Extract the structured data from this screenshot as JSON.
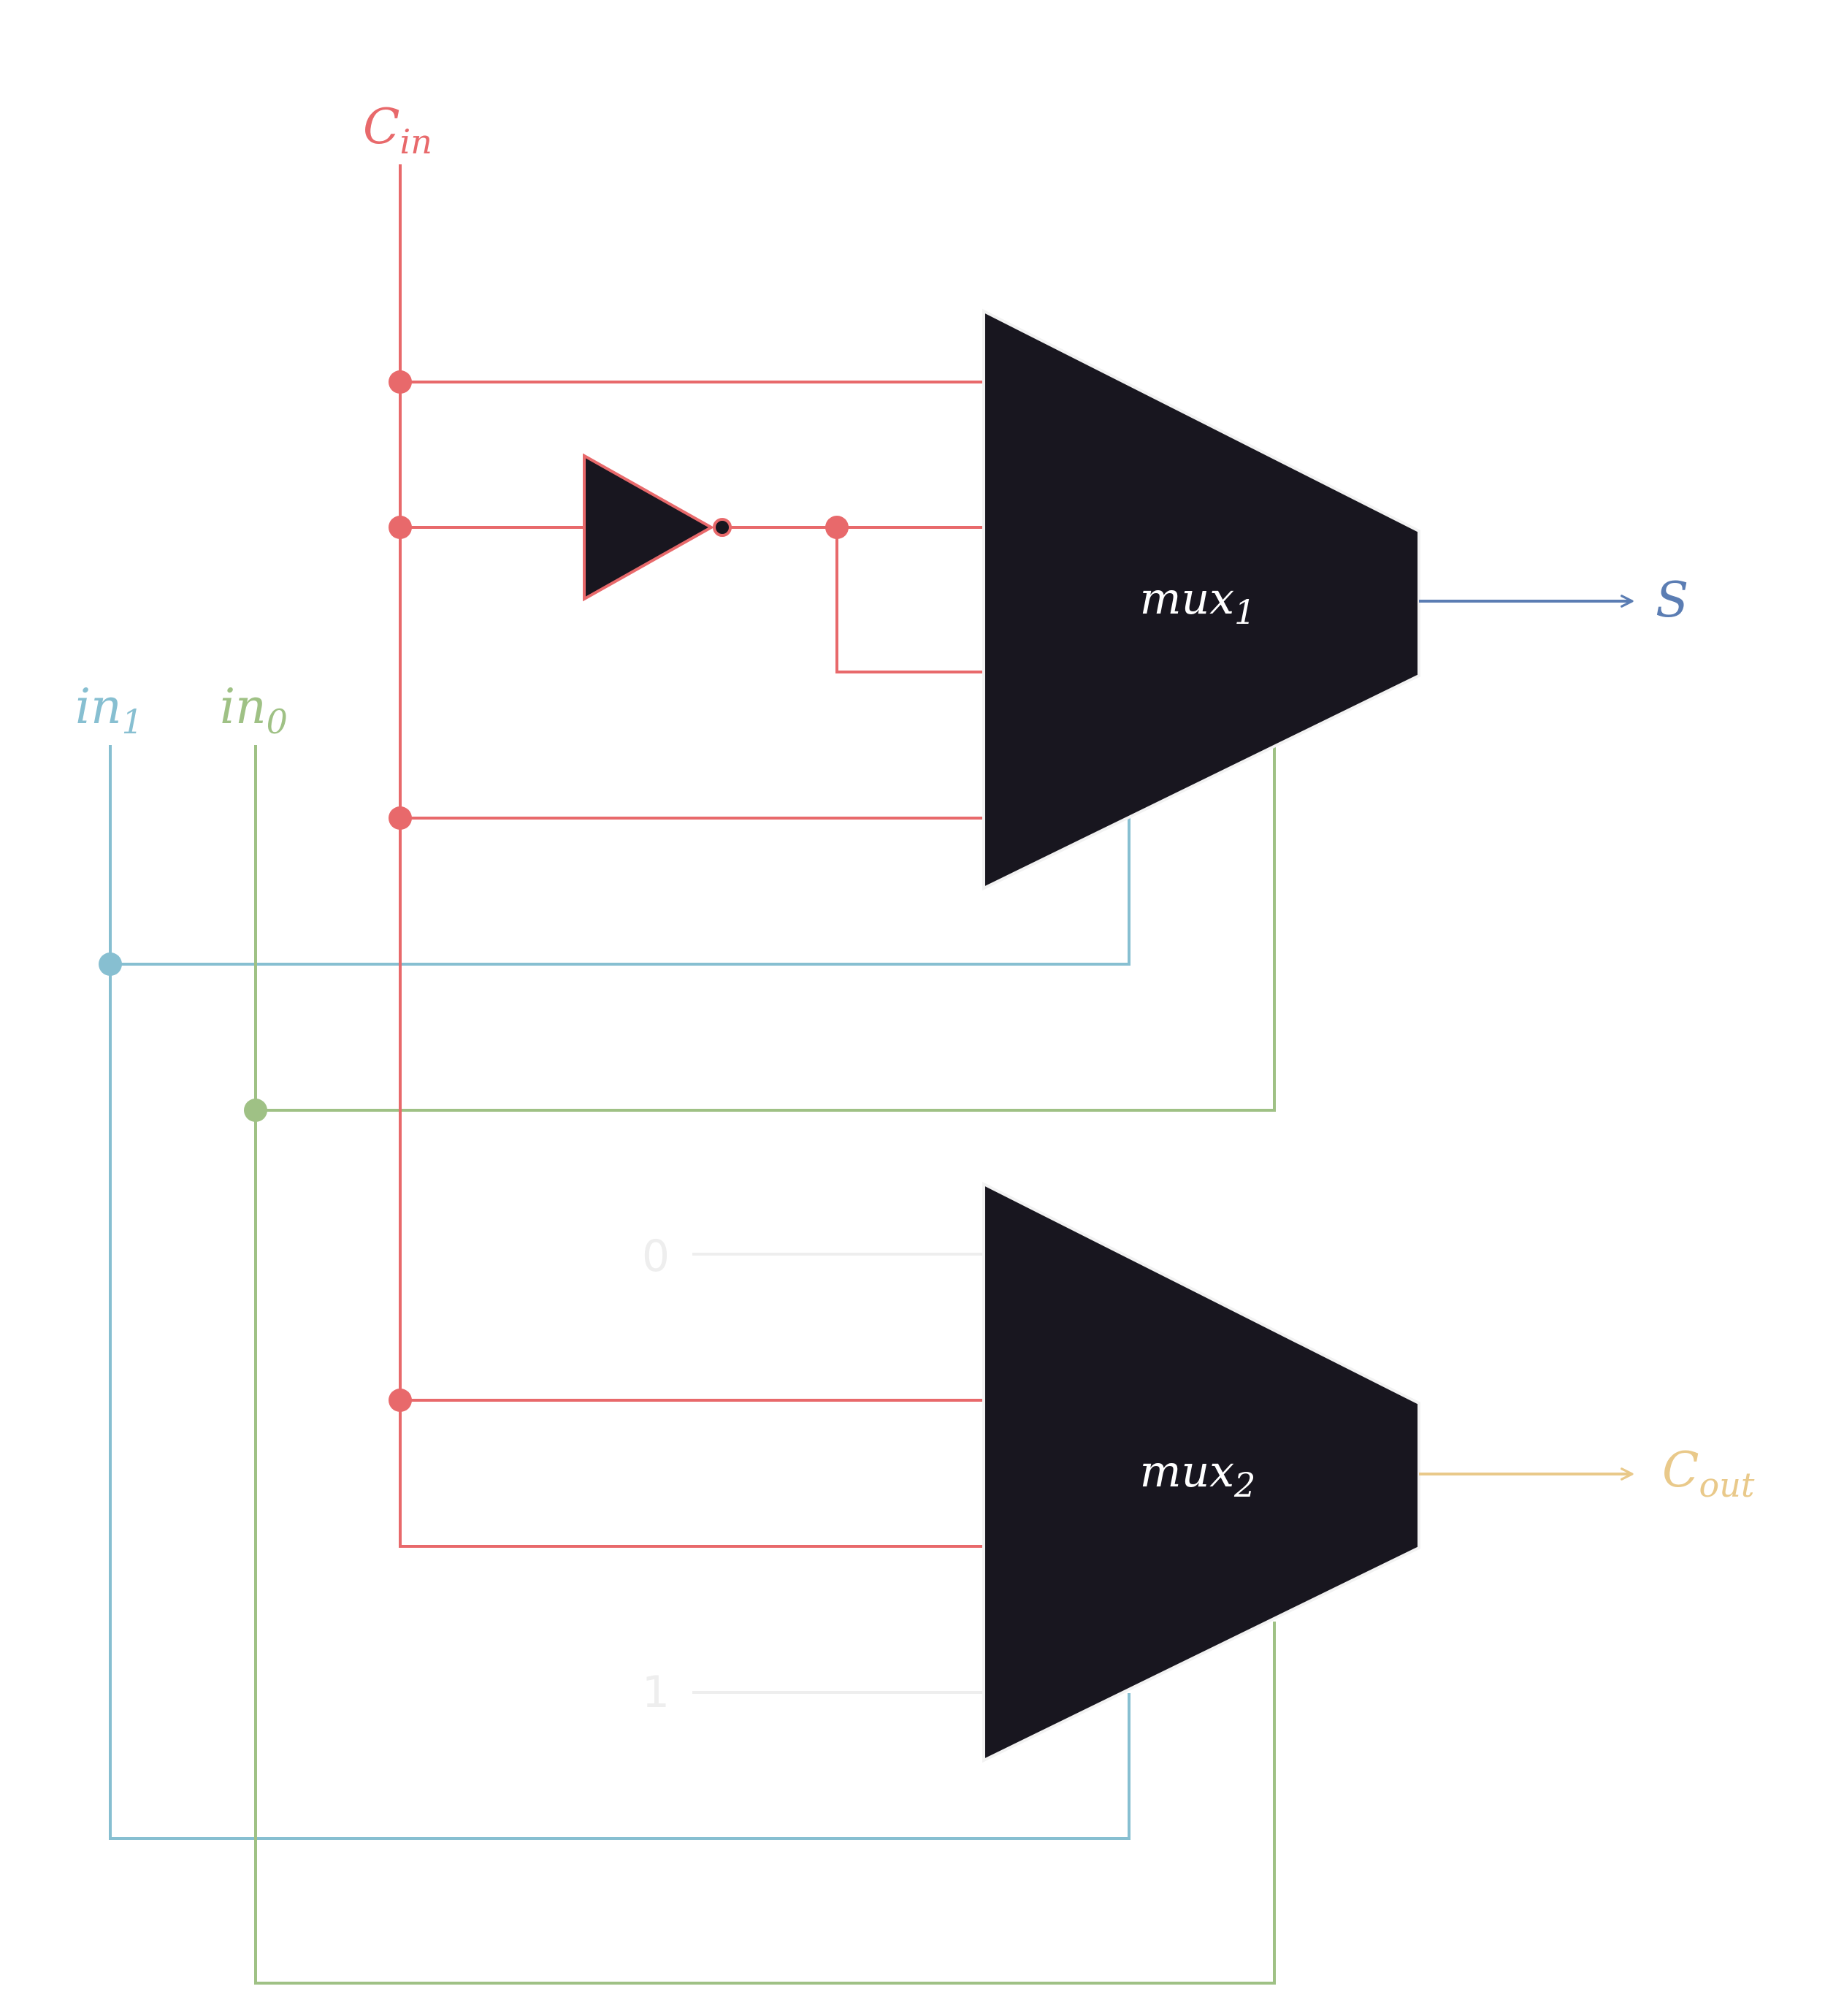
{
  "colors": {
    "cin": "#e8696b",
    "in1": "#87bfd1",
    "in0": "#9fc185",
    "s": "#5b7db3",
    "cout": "#e9c98a",
    "mux_fill": "#18161f",
    "mux_stroke": "#f2f2f2",
    "const": "#eeeeee",
    "background": "#ffffff"
  },
  "labels": {
    "cin": {
      "base": "C",
      "sub": "in"
    },
    "in1": {
      "base": "in",
      "sub": "1"
    },
    "in0": {
      "base": "in",
      "sub": "0"
    },
    "s": {
      "base": "S"
    },
    "cout": {
      "base": "C",
      "sub": "out"
    }
  },
  "mux1": {
    "base": "mux",
    "sub": "1"
  },
  "mux2": {
    "base": "mux",
    "sub": "2"
  },
  "constants": {
    "zero": "0",
    "one": "1"
  },
  "icons": [
    "not-gate-icon",
    "arrow-right-icon",
    "junction-dot-icon"
  ]
}
